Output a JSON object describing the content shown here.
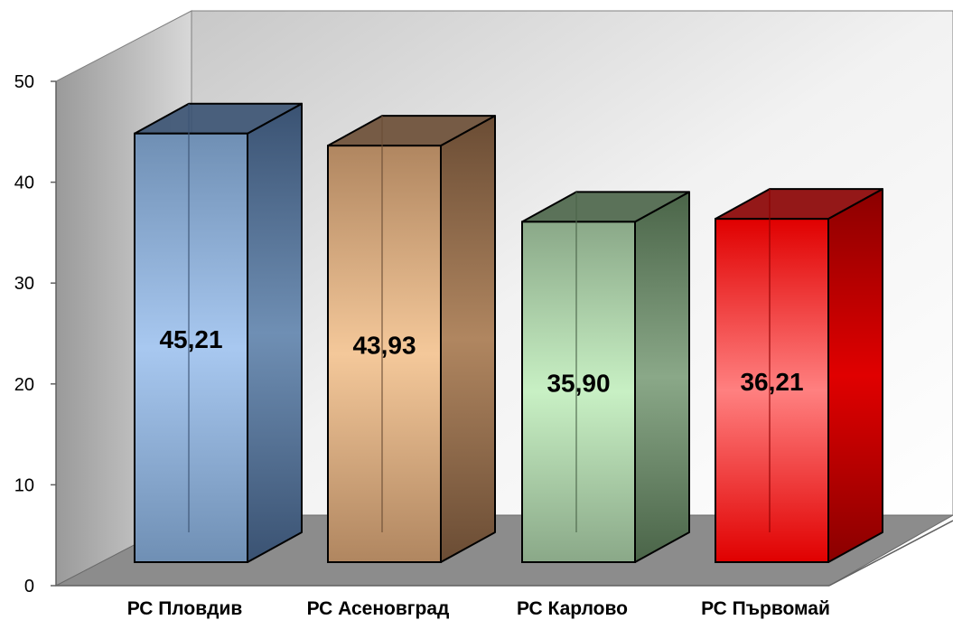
{
  "chart_data": {
    "type": "bar",
    "style": "3d-column",
    "categories": [
      "РС Пловдив",
      "РС Асеновград",
      "РС Карлово",
      "РС Първомай"
    ],
    "values": [
      45.21,
      43.93,
      35.9,
      36.21
    ],
    "value_labels": [
      "45,21",
      "43,93",
      "35,90",
      "36,21"
    ],
    "ylim": [
      0,
      50
    ],
    "yticks": [
      0,
      10,
      20,
      30,
      40,
      50
    ],
    "ytick_labels": [
      "0",
      "10",
      "20",
      "30",
      "40",
      "50"
    ],
    "grid": false,
    "legend": "none",
    "colors": [
      {
        "light": "#a8c8f0",
        "mid": "#6f8fb4",
        "dark": "#3a5272"
      },
      {
        "light": "#f4c89a",
        "mid": "#b08660",
        "dark": "#6a4c34"
      },
      {
        "light": "#c8f0c4",
        "mid": "#8aa888",
        "dark": "#4a6448"
      },
      {
        "light": "#ff8080",
        "mid": "#e00000",
        "dark": "#8a0000"
      }
    ]
  }
}
